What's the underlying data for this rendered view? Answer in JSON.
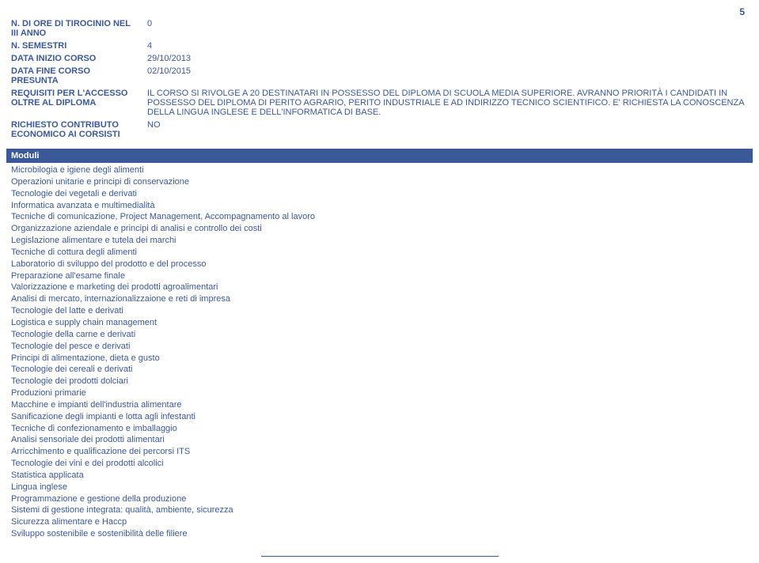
{
  "page_number": "5",
  "info_rows": [
    {
      "label": "N. DI ORE DI TIROCINIO NEL III ANNO",
      "value": "0"
    },
    {
      "label": "N. SEMESTRI",
      "value": "4"
    },
    {
      "label": "DATA INIZIO CORSO",
      "value": "29/10/2013"
    },
    {
      "label": "DATA FINE CORSO PRESUNTA",
      "value": "02/10/2015"
    },
    {
      "label": "REQUISITI PER L'ACCESSO OLTRE AL DIPLOMA",
      "value": "IL CORSO SI RIVOLGE A 20 DESTINATARI IN POSSESSO DEL DIPLOMA DI SCUOLA MEDIA SUPERIORE. AVRANNO PRIORITÀ I CANDIDATI IN POSSESSO DEL DIPLOMA DI PERITO AGRARIO, PERITO INDUSTRIALE E AD INDIRIZZO TECNICO SCIENTIFICO. E' RICHIESTA LA CONOSCENZA DELLA LINGUA INGLESE E DELL'INFORMATICA DI BASE."
    },
    {
      "label": "RICHIESTO CONTRIBUTO ECONOMICO AI CORSISTI",
      "value": "NO"
    }
  ],
  "moduli_header": "Moduli",
  "moduli": [
    "Microbilogia e igiene degli alimenti",
    "Operazioni unitarie e principi di conservazione",
    "Tecnologie dei vegetali e derivati",
    "Informatica avanzata e multimedialità",
    "Tecniche di comunicazione, Project Management, Accompagnamento al lavoro",
    "Organizzazione aziendale e principi di analisi e controllo dei costi",
    "Legislazione alimentare e tutela dei marchi",
    "Tecniche di cottura degli alimenti",
    "Laboratorio di sviluppo del prodotto e del processo",
    "Preparazione all'esame finale",
    "Valorizzazione e marketing dei prodotti agroalimentari",
    "Analisi di mercato, internazionalizzaione e reti di impresa",
    "Tecnologie del latte e derivati",
    "Logistica e supply chain management",
    "Tecnologie della carne e derivati",
    "Tecnologie del pesce e derivati",
    "Principi di alimentazione, dieta e gusto",
    "Tecnologie dei cereali e derivati",
    "Tecnologie dei prodotti dolciari",
    "Produzioni primarie",
    "Macchine e impianti dell'industria alimentare",
    "Sanificazione degli impianti e lotta agli infestanti",
    "Tecniche di confezionamento e imballaggio",
    "Analisi sensoriale dei prodotti alimentari",
    "Arricchimento e qualificazione dei percorsi ITS",
    "Tecnologie dei vini e dei prodotti alcolici",
    "Statistica applicata",
    "Lingua inglese",
    "Programmazione e gestione della produzione",
    "Sistemi di gestione integrata: qualità, ambiente, sicurezza",
    "Sicurezza alimentare e Haccp",
    "Sviluppo sostenibile e sostenibilità delle filiere"
  ]
}
